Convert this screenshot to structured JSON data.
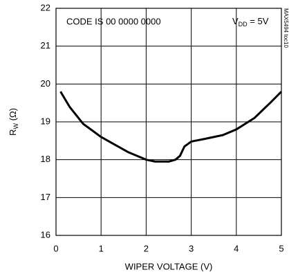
{
  "chart_data": {
    "type": "line",
    "annotations": [
      "CODE IS 00 0000 0000",
      "MAX5494 toc10"
    ],
    "supply_label": {
      "main": "V",
      "sub": "DD",
      "rest": " = 5V"
    },
    "y_label": {
      "main": "R",
      "sub": "W",
      "rest": " (Ω)"
    },
    "x_label": "WIPER VOLTAGE (V)",
    "x": [
      0.1,
      0.3,
      0.6,
      1.0,
      1.3,
      1.6,
      2.0,
      2.2,
      2.5,
      2.65,
      2.75,
      2.85,
      3.0,
      3.3,
      3.7,
      4.0,
      4.4,
      4.75,
      5.0
    ],
    "series": [
      {
        "color": "#000000",
        "values": [
          19.8,
          19.4,
          18.95,
          18.6,
          18.4,
          18.2,
          18.0,
          17.95,
          17.95,
          18.0,
          18.1,
          18.35,
          18.48,
          18.55,
          18.65,
          18.8,
          19.1,
          19.5,
          19.8
        ]
      }
    ],
    "xlim": [
      0,
      5
    ],
    "xticks": [
      0,
      1,
      2,
      3,
      4,
      5
    ],
    "ylim": [
      16,
      22
    ],
    "yticks": [
      16,
      17,
      18,
      19,
      20,
      21,
      22
    ],
    "grid": true
  }
}
